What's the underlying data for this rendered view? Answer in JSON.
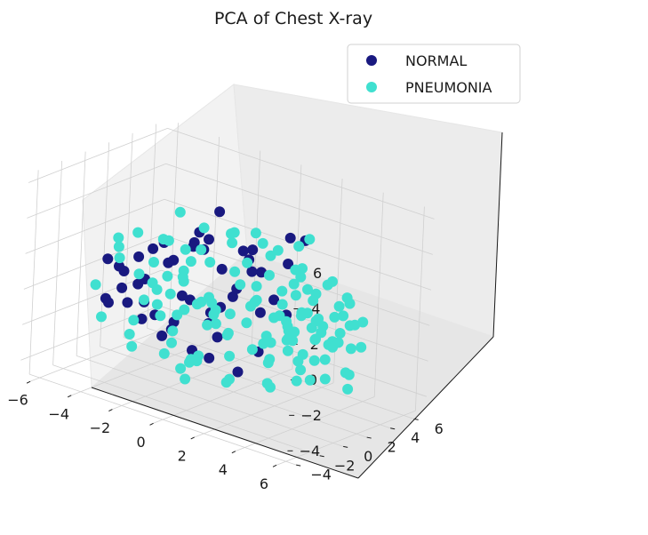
{
  "chart_data": {
    "type": "scatter",
    "projection": "3d",
    "title": "PCA of Chest X-ray",
    "xlabel": "",
    "ylabel": "",
    "zlabel": "",
    "xlim": [
      -6.5,
      6.5
    ],
    "ylim": [
      -4.8,
      7.0
    ],
    "zlim": [
      -5.0,
      6.5
    ],
    "x_ticks": [
      -6,
      -4,
      -2,
      0,
      2,
      4,
      6
    ],
    "y_ticks": [
      -4,
      -2,
      0,
      2,
      4,
      6
    ],
    "z_ticks": [
      -4,
      -2,
      0,
      2,
      4,
      6
    ],
    "x_tick_labels": [
      "−6",
      "−4",
      "−2",
      "0",
      "2",
      "4",
      "6"
    ],
    "y_tick_labels": [
      "−4",
      "−2",
      "0",
      "2",
      "4",
      "6"
    ],
    "z_tick_labels": [
      "−4",
      "−2",
      "0",
      "2",
      "4",
      "6"
    ],
    "grid": true,
    "legend_position": "top-right",
    "series": [
      {
        "name": "NORMAL",
        "color": "#191980",
        "points": [
          [
            -5.5,
            0.5,
            -1.5
          ],
          [
            -5.0,
            1.5,
            -1.8
          ],
          [
            -4.8,
            -0.5,
            -1.2
          ],
          [
            -4.6,
            2.2,
            -0.5
          ],
          [
            -4.4,
            0.0,
            0.6
          ],
          [
            -4.2,
            3.0,
            1.5
          ],
          [
            -4.0,
            1.0,
            -2.2
          ],
          [
            -3.8,
            -1.2,
            0.2
          ],
          [
            -3.6,
            2.8,
            0.8
          ],
          [
            -3.5,
            0.8,
            2.0
          ],
          [
            -3.3,
            4.0,
            1.6
          ],
          [
            -3.2,
            -0.3,
            -0.6
          ],
          [
            -3.0,
            1.8,
            -2.6
          ],
          [
            -2.8,
            3.5,
            2.5
          ],
          [
            -2.7,
            -1.8,
            1.0
          ],
          [
            -2.5,
            2.4,
            -0.9
          ],
          [
            -2.4,
            0.2,
            1.8
          ],
          [
            -2.2,
            4.5,
            0.4
          ],
          [
            -2.0,
            -0.8,
            -1.9
          ],
          [
            -1.9,
            1.4,
            2.6
          ],
          [
            -1.8,
            3.8,
            -1.4
          ],
          [
            -1.6,
            -2.2,
            -0.2
          ],
          [
            -1.5,
            2.0,
            3.0
          ],
          [
            -1.3,
            0.6,
            -2.8
          ],
          [
            -1.2,
            5.0,
            1.2
          ],
          [
            -1.0,
            -1.0,
            0.8
          ],
          [
            -0.9,
            3.2,
            -0.3
          ],
          [
            -0.8,
            1.2,
            -3.2
          ],
          [
            -0.6,
            4.2,
            2.2
          ],
          [
            -0.5,
            -0.2,
            3.4
          ],
          [
            -0.4,
            2.6,
            0.5
          ],
          [
            -0.2,
            5.5,
            -0.8
          ],
          [
            0.0,
            0.4,
            -1.5
          ],
          [
            0.2,
            3.6,
            1.4
          ],
          [
            0.4,
            1.6,
            3.2
          ],
          [
            0.6,
            -1.5,
            0.0
          ],
          [
            0.8,
            4.8,
            1.8
          ],
          [
            1.0,
            2.2,
            -2.4
          ],
          [
            1.3,
            0.8,
            2.6
          ],
          [
            1.6,
            3.4,
            -0.4
          ],
          [
            -3.9,
            3.6,
            -3.0
          ],
          [
            -4.5,
            1.4,
            1.0
          ],
          [
            -4.7,
            -0.9,
            1.4
          ],
          [
            -5.2,
            1.0,
            0.3
          ],
          [
            -3.1,
            5.3,
            -2.6
          ],
          [
            2.5,
            -2.2,
            -1.8
          ],
          [
            -2.6,
            4.8,
            3.4
          ],
          [
            0.3,
            5.8,
            2.8
          ],
          [
            1.8,
            4.4,
            3.6
          ],
          [
            -1.1,
            6.0,
            -2.0
          ]
        ]
      },
      {
        "name": "PNEUMONIA",
        "color": "#40e0d0",
        "points": [
          [
            -5.8,
            2.0,
            0.9
          ],
          [
            -5.4,
            -0.6,
            -0.4
          ],
          [
            -5.1,
            3.1,
            -2.1
          ],
          [
            -4.9,
            0.3,
            2.2
          ],
          [
            -4.5,
            -1.6,
            -1.6
          ],
          [
            -4.1,
            2.0,
            0.7
          ],
          [
            -3.9,
            4.3,
            -0.9
          ],
          [
            -3.7,
            -0.2,
            3.1
          ],
          [
            -3.4,
            1.2,
            -1.2
          ],
          [
            -3.2,
            3.0,
            0.3
          ],
          [
            -3.0,
            -1.2,
            1.3
          ],
          [
            -2.9,
            5.0,
            -1.9
          ],
          [
            -2.7,
            0.7,
            2.8
          ],
          [
            -2.5,
            -2.4,
            -0.8
          ],
          [
            -2.3,
            2.8,
            1.9
          ],
          [
            -2.1,
            4.0,
            -2.5
          ],
          [
            -1.9,
            -0.4,
            0.4
          ],
          [
            -1.7,
            1.9,
            3.6
          ],
          [
            -1.5,
            5.4,
            0.8
          ],
          [
            -1.3,
            -1.8,
            2.0
          ],
          [
            -1.1,
            3.4,
            -1.4
          ],
          [
            -0.9,
            0.5,
            0.1
          ],
          [
            -0.7,
            4.6,
            3.0
          ],
          [
            -0.5,
            -0.9,
            -2.6
          ],
          [
            -0.3,
            2.2,
            1.6
          ],
          [
            -0.1,
            6.0,
            -0.4
          ],
          [
            0.1,
            1.3,
            4.2
          ],
          [
            0.3,
            -2.0,
            1.1
          ],
          [
            0.5,
            3.8,
            2.4
          ],
          [
            0.7,
            0.0,
            -1.0
          ],
          [
            0.9,
            5.2,
            0.6
          ],
          [
            1.1,
            2.0,
            3.8
          ],
          [
            1.3,
            -1.0,
            -0.4
          ],
          [
            1.5,
            4.2,
            1.9
          ],
          [
            1.7,
            0.6,
            1.2
          ],
          [
            1.9,
            3.0,
            -1.6
          ],
          [
            2.1,
            -1.6,
            2.8
          ],
          [
            2.3,
            5.6,
            1.0
          ],
          [
            2.5,
            1.8,
            0.0
          ],
          [
            2.7,
            -0.2,
            3.2
          ],
          [
            -4.0,
            0.0,
            -2.8
          ],
          [
            -3.6,
            3.2,
            3.4
          ],
          [
            -2.8,
            1.5,
            -3.2
          ],
          [
            -2.0,
            4.8,
            2.4
          ],
          [
            -1.2,
            -0.5,
            -3.5
          ],
          [
            0.0,
            4.4,
            -2.9
          ],
          [
            1.0,
            6.2,
            2.9
          ],
          [
            2.0,
            3.5,
            3.6
          ],
          [
            -4.8,
            4.0,
            1.2
          ],
          [
            -3.3,
            -2.4,
            2.4
          ],
          [
            -0.2,
            -2.8,
            0.5
          ],
          [
            0.6,
            -3.0,
            -1.8
          ],
          [
            1.6,
            -3.4,
            0.8
          ],
          [
            -2.2,
            -3.0,
            -2.0
          ],
          [
            0.2,
            -2.6,
            -3.0
          ],
          [
            2.4,
            -2.8,
            -0.8
          ],
          [
            -1.0,
            -3.6,
            2.2
          ],
          [
            1.2,
            6.6,
            -0.2
          ],
          [
            -0.6,
            6.4,
            1.6
          ],
          [
            0.8,
            -4.0,
            1.5
          ],
          [
            -1.6,
            2.4,
            -0.4
          ],
          [
            -2.0,
            0.8,
            1.0
          ],
          [
            -0.8,
            1.6,
            -0.6
          ],
          [
            -2.6,
            2.0,
            2.0
          ],
          [
            -1.2,
            0.0,
            2.4
          ],
          [
            -3.0,
            0.4,
            0.0
          ],
          [
            -2.4,
            3.8,
            0.9
          ],
          [
            -1.6,
            4.2,
            2.2
          ],
          [
            0.2,
            2.8,
            -0.3
          ],
          [
            1.0,
            1.8,
            1.4
          ],
          [
            3.0,
            0.5,
            1.5
          ],
          [
            3.3,
            -1.3,
            0.3
          ],
          [
            3.5,
            2.6,
            -0.8
          ],
          [
            3.8,
            0.2,
            2.4
          ],
          [
            4.0,
            -2.2,
            -0.5
          ],
          [
            4.2,
            1.5,
            0.9
          ],
          [
            4.4,
            -0.5,
            -2.0
          ],
          [
            4.6,
            3.2,
            1.8
          ],
          [
            4.8,
            -1.6,
            1.2
          ],
          [
            5.0,
            0.8,
            -0.9
          ],
          [
            5.2,
            -2.8,
            0.6
          ],
          [
            5.4,
            2.0,
            2.1
          ],
          [
            5.6,
            -0.2,
            -1.5
          ],
          [
            5.8,
            -1.9,
            1.9
          ],
          [
            6.0,
            1.2,
            0.0
          ],
          [
            6.2,
            -0.8,
            1.0
          ],
          [
            3.1,
            1.9,
            3.2
          ],
          [
            3.4,
            -2.6,
            2.6
          ],
          [
            3.7,
            3.8,
            0.2
          ],
          [
            4.1,
            0.0,
            3.6
          ],
          [
            4.5,
            -3.2,
            -1.4
          ],
          [
            4.9,
            2.8,
            -2.2
          ],
          [
            5.3,
            -1.0,
            3.0
          ],
          [
            5.7,
            1.6,
            -2.5
          ],
          [
            6.1,
            -2.4,
            -0.8
          ],
          [
            3.2,
            -0.6,
            -2.8
          ],
          [
            3.6,
            1.0,
            -1.6
          ],
          [
            3.9,
            -1.8,
            1.7
          ],
          [
            4.3,
            2.4,
            2.8
          ],
          [
            4.7,
            0.4,
            0.2
          ],
          [
            5.1,
            -0.3,
            1.6
          ],
          [
            5.5,
            1.1,
            0.7
          ],
          [
            5.9,
            0.2,
            2.6
          ],
          [
            6.3,
            0.6,
            -1.2
          ],
          [
            3.0,
            2.2,
            0.6
          ],
          [
            3.5,
            -1.4,
            -1.1
          ],
          [
            4.0,
            0.9,
            1.3
          ],
          [
            4.4,
            -1.0,
            0.4
          ],
          [
            4.8,
            1.4,
            -0.3
          ],
          [
            5.2,
            0.0,
            0.9
          ],
          [
            5.6,
            -1.2,
            -0.2
          ],
          [
            6.0,
            -0.4,
            0.5
          ],
          [
            2.8,
            0.0,
            -0.6
          ],
          [
            3.3,
            0.6,
            0.1
          ],
          [
            3.8,
            -0.4,
            0.8
          ],
          [
            4.2,
            0.3,
            -0.8
          ],
          [
            4.6,
            -0.7,
            1.8
          ],
          [
            5.0,
            2.2,
            1.2
          ],
          [
            5.4,
            -2.0,
            -0.6
          ],
          [
            5.8,
            1.8,
            1.1
          ],
          [
            2.6,
            -1.8,
            0.9
          ],
          [
            2.9,
            2.8,
            1.7
          ],
          [
            3.6,
            -3.0,
            0.1
          ],
          [
            4.1,
            3.5,
            -1.0
          ],
          [
            4.5,
            -2.4,
            2.2
          ],
          [
            4.9,
            3.0,
            0.4
          ],
          [
            5.3,
            -3.0,
            1.4
          ],
          [
            5.7,
            2.6,
            -0.4
          ],
          [
            6.1,
            -1.5,
            2.0
          ],
          [
            6.4,
            1.4,
            1.6
          ],
          [
            2.2,
            -2.6,
            -2.4
          ],
          [
            1.4,
            -3.8,
            -1.2
          ],
          [
            0.4,
            -4.2,
            0.2
          ],
          [
            2.0,
            -3.6,
            1.6
          ],
          [
            -0.4,
            -3.4,
            -1.6
          ],
          [
            1.8,
            -4.4,
            -0.6
          ],
          [
            0.0,
            -4.6,
            1.0
          ],
          [
            3.0,
            -3.8,
            -1.6
          ]
        ]
      }
    ]
  }
}
